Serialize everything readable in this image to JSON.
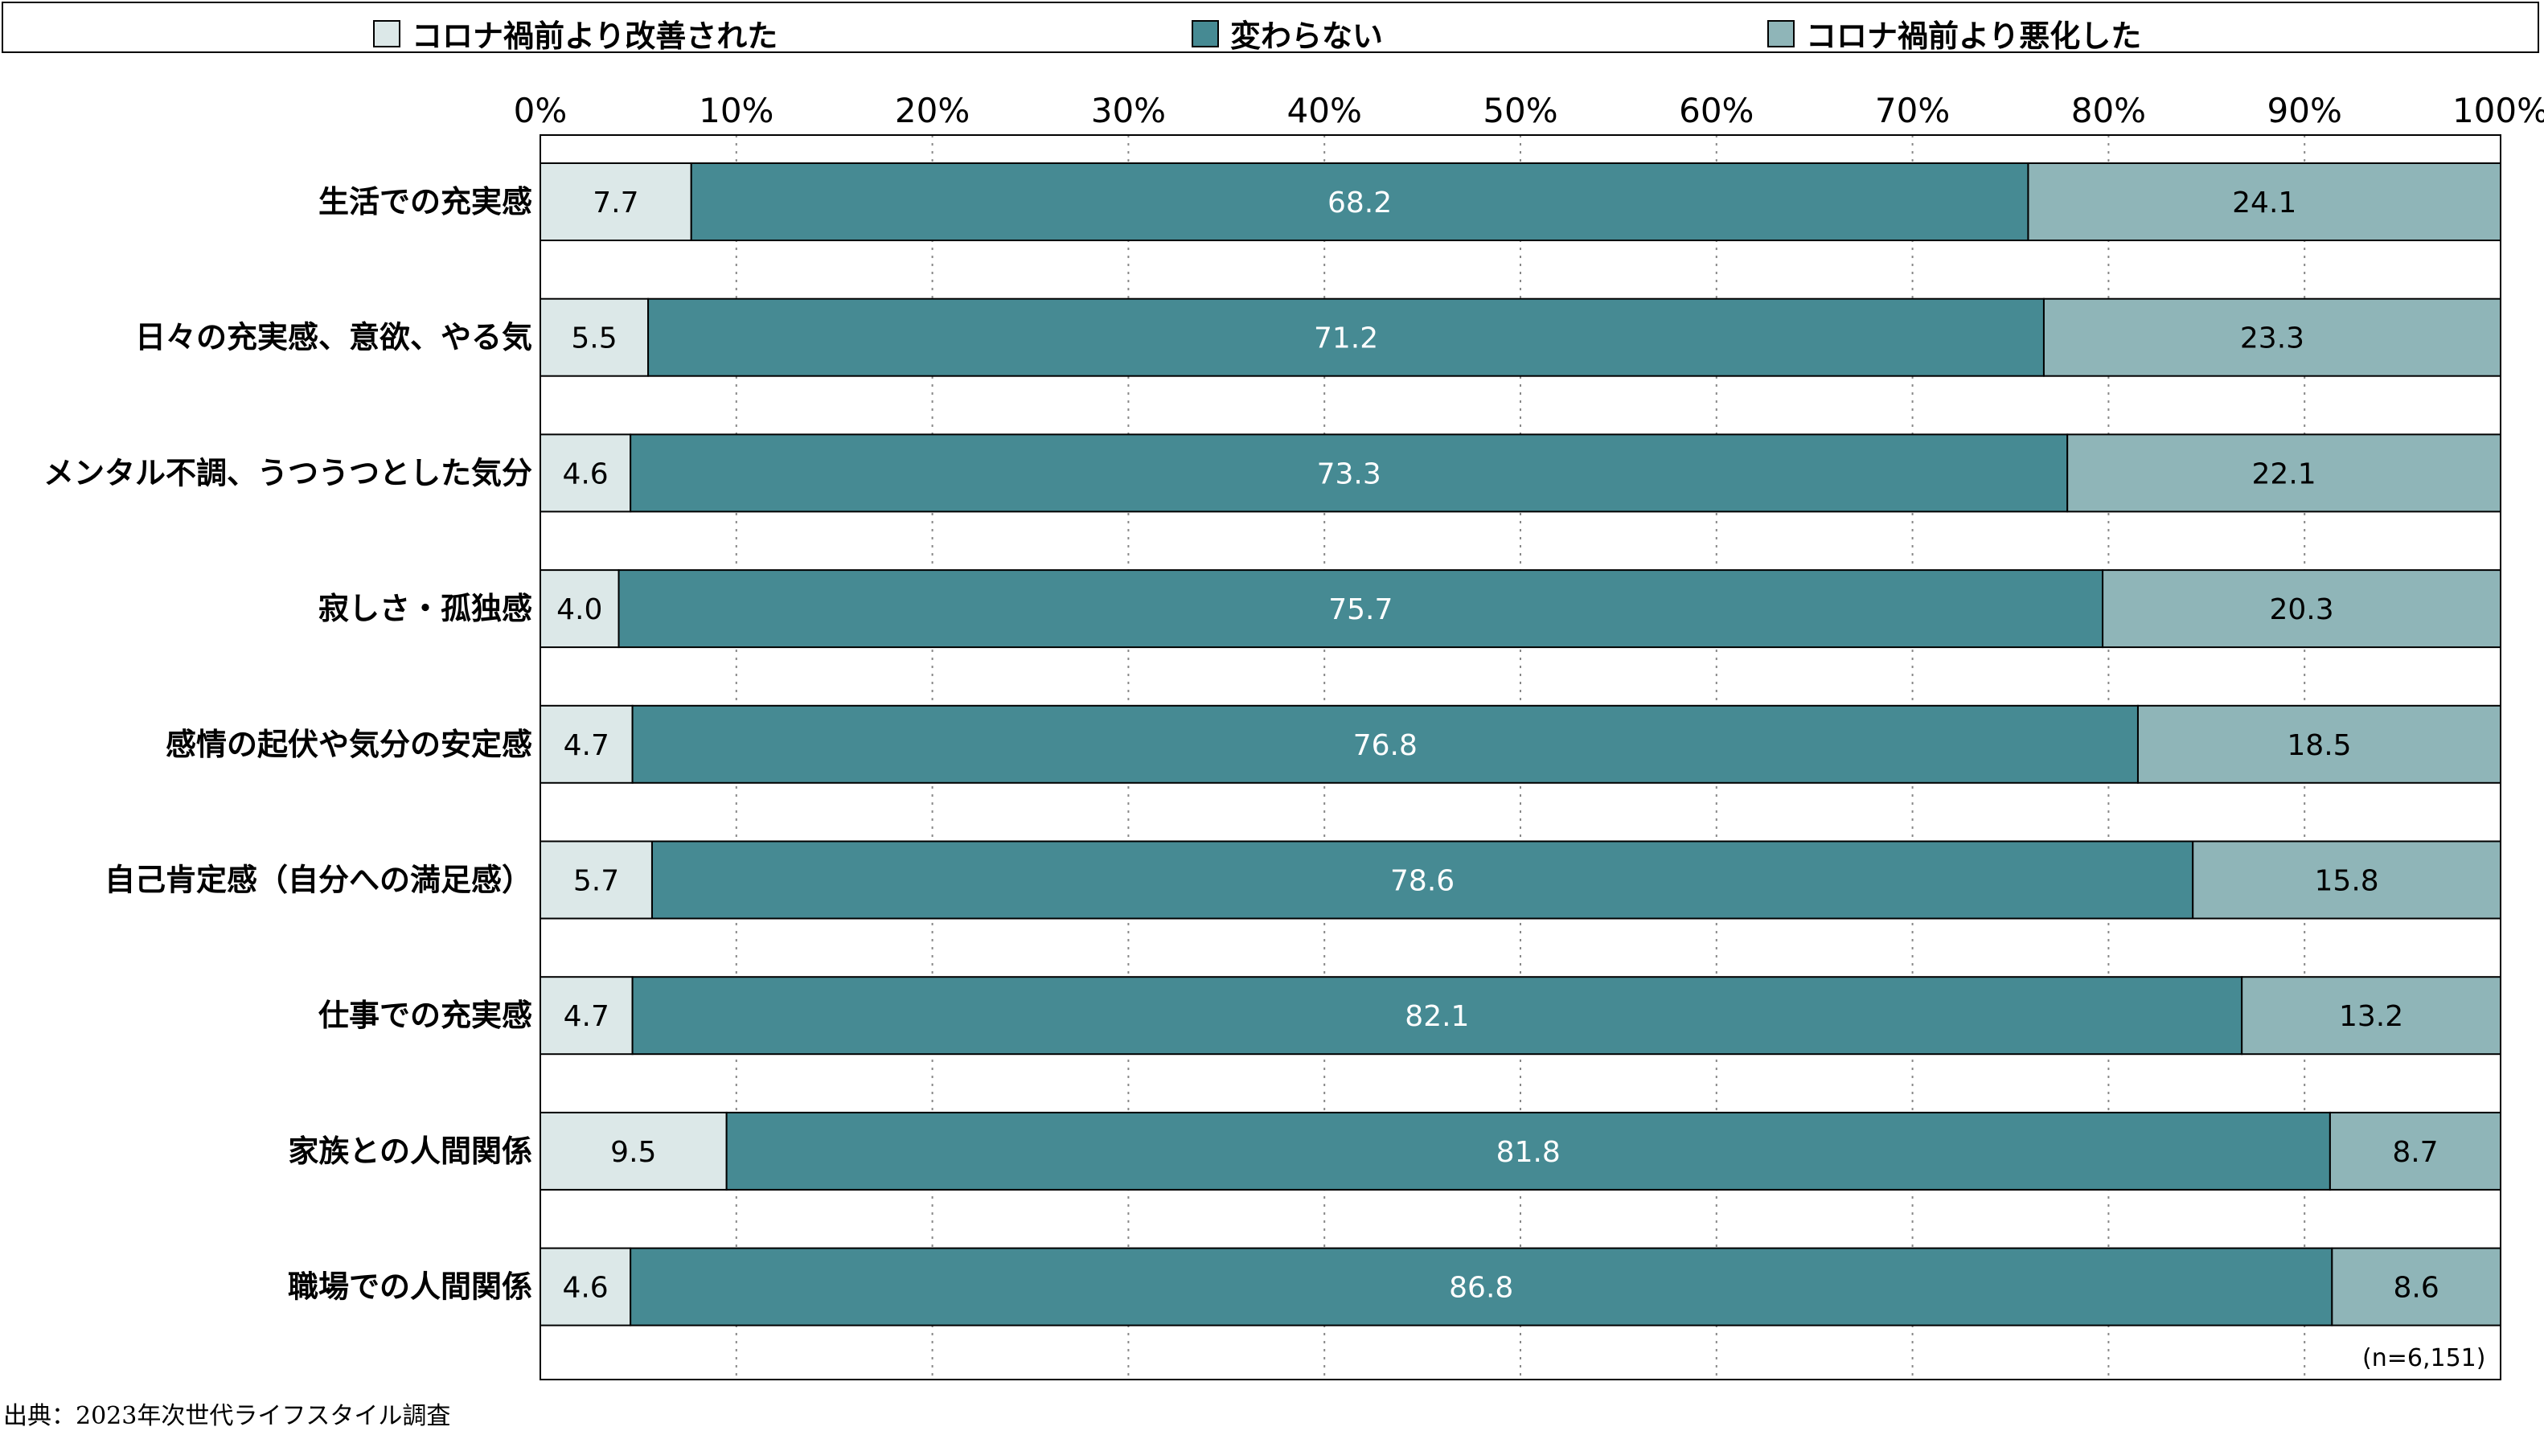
{
  "legend": {
    "items": [
      {
        "label": "コロナ禍前より改善された",
        "color": "#dce8e8"
      },
      {
        "label": "変わらない",
        "color": "#468a93"
      },
      {
        "label": "コロナ禍前より悪化した",
        "color": "#8fb5b8"
      }
    ]
  },
  "chart_data": {
    "type": "bar",
    "orientation": "horizontal",
    "stacked": true,
    "xlim": [
      0,
      100
    ],
    "x_ticks": [
      "0%",
      "10%",
      "20%",
      "30%",
      "40%",
      "50%",
      "60%",
      "70%",
      "80%",
      "90%",
      "100%"
    ],
    "grid": "vertical dotted",
    "legend_position": "top",
    "categories": [
      "生活での充実感",
      "日々の充実感、意欲、やる気",
      "メンタル不調、うつうつとした気分",
      "寂しさ・孤独感",
      "感情の起伏や気分の安定感",
      "自己肯定感（自分への満足感）",
      "仕事での充実感",
      "家族との人間関係",
      "職場での人間関係"
    ],
    "series": [
      {
        "name": "コロナ禍前より改善された",
        "values": [
          "7.7",
          "5.5",
          "4.6",
          "4.0",
          "4.7",
          "5.7",
          "4.7",
          "9.5",
          "4.6"
        ]
      },
      {
        "name": "変わらない",
        "values": [
          "68.2",
          "71.2",
          "73.3",
          "75.7",
          "76.8",
          "78.6",
          "82.1",
          "81.8",
          "86.8"
        ]
      },
      {
        "name": "コロナ禍前より悪化した",
        "values": [
          "24.1",
          "23.3",
          "22.1",
          "20.3",
          "18.5",
          "15.8",
          "13.2",
          "8.7",
          "8.6"
        ]
      }
    ]
  },
  "footer": {
    "n_note": "(n=6,151)",
    "source": "出典：2023年次世代ライフスタイル調査"
  }
}
